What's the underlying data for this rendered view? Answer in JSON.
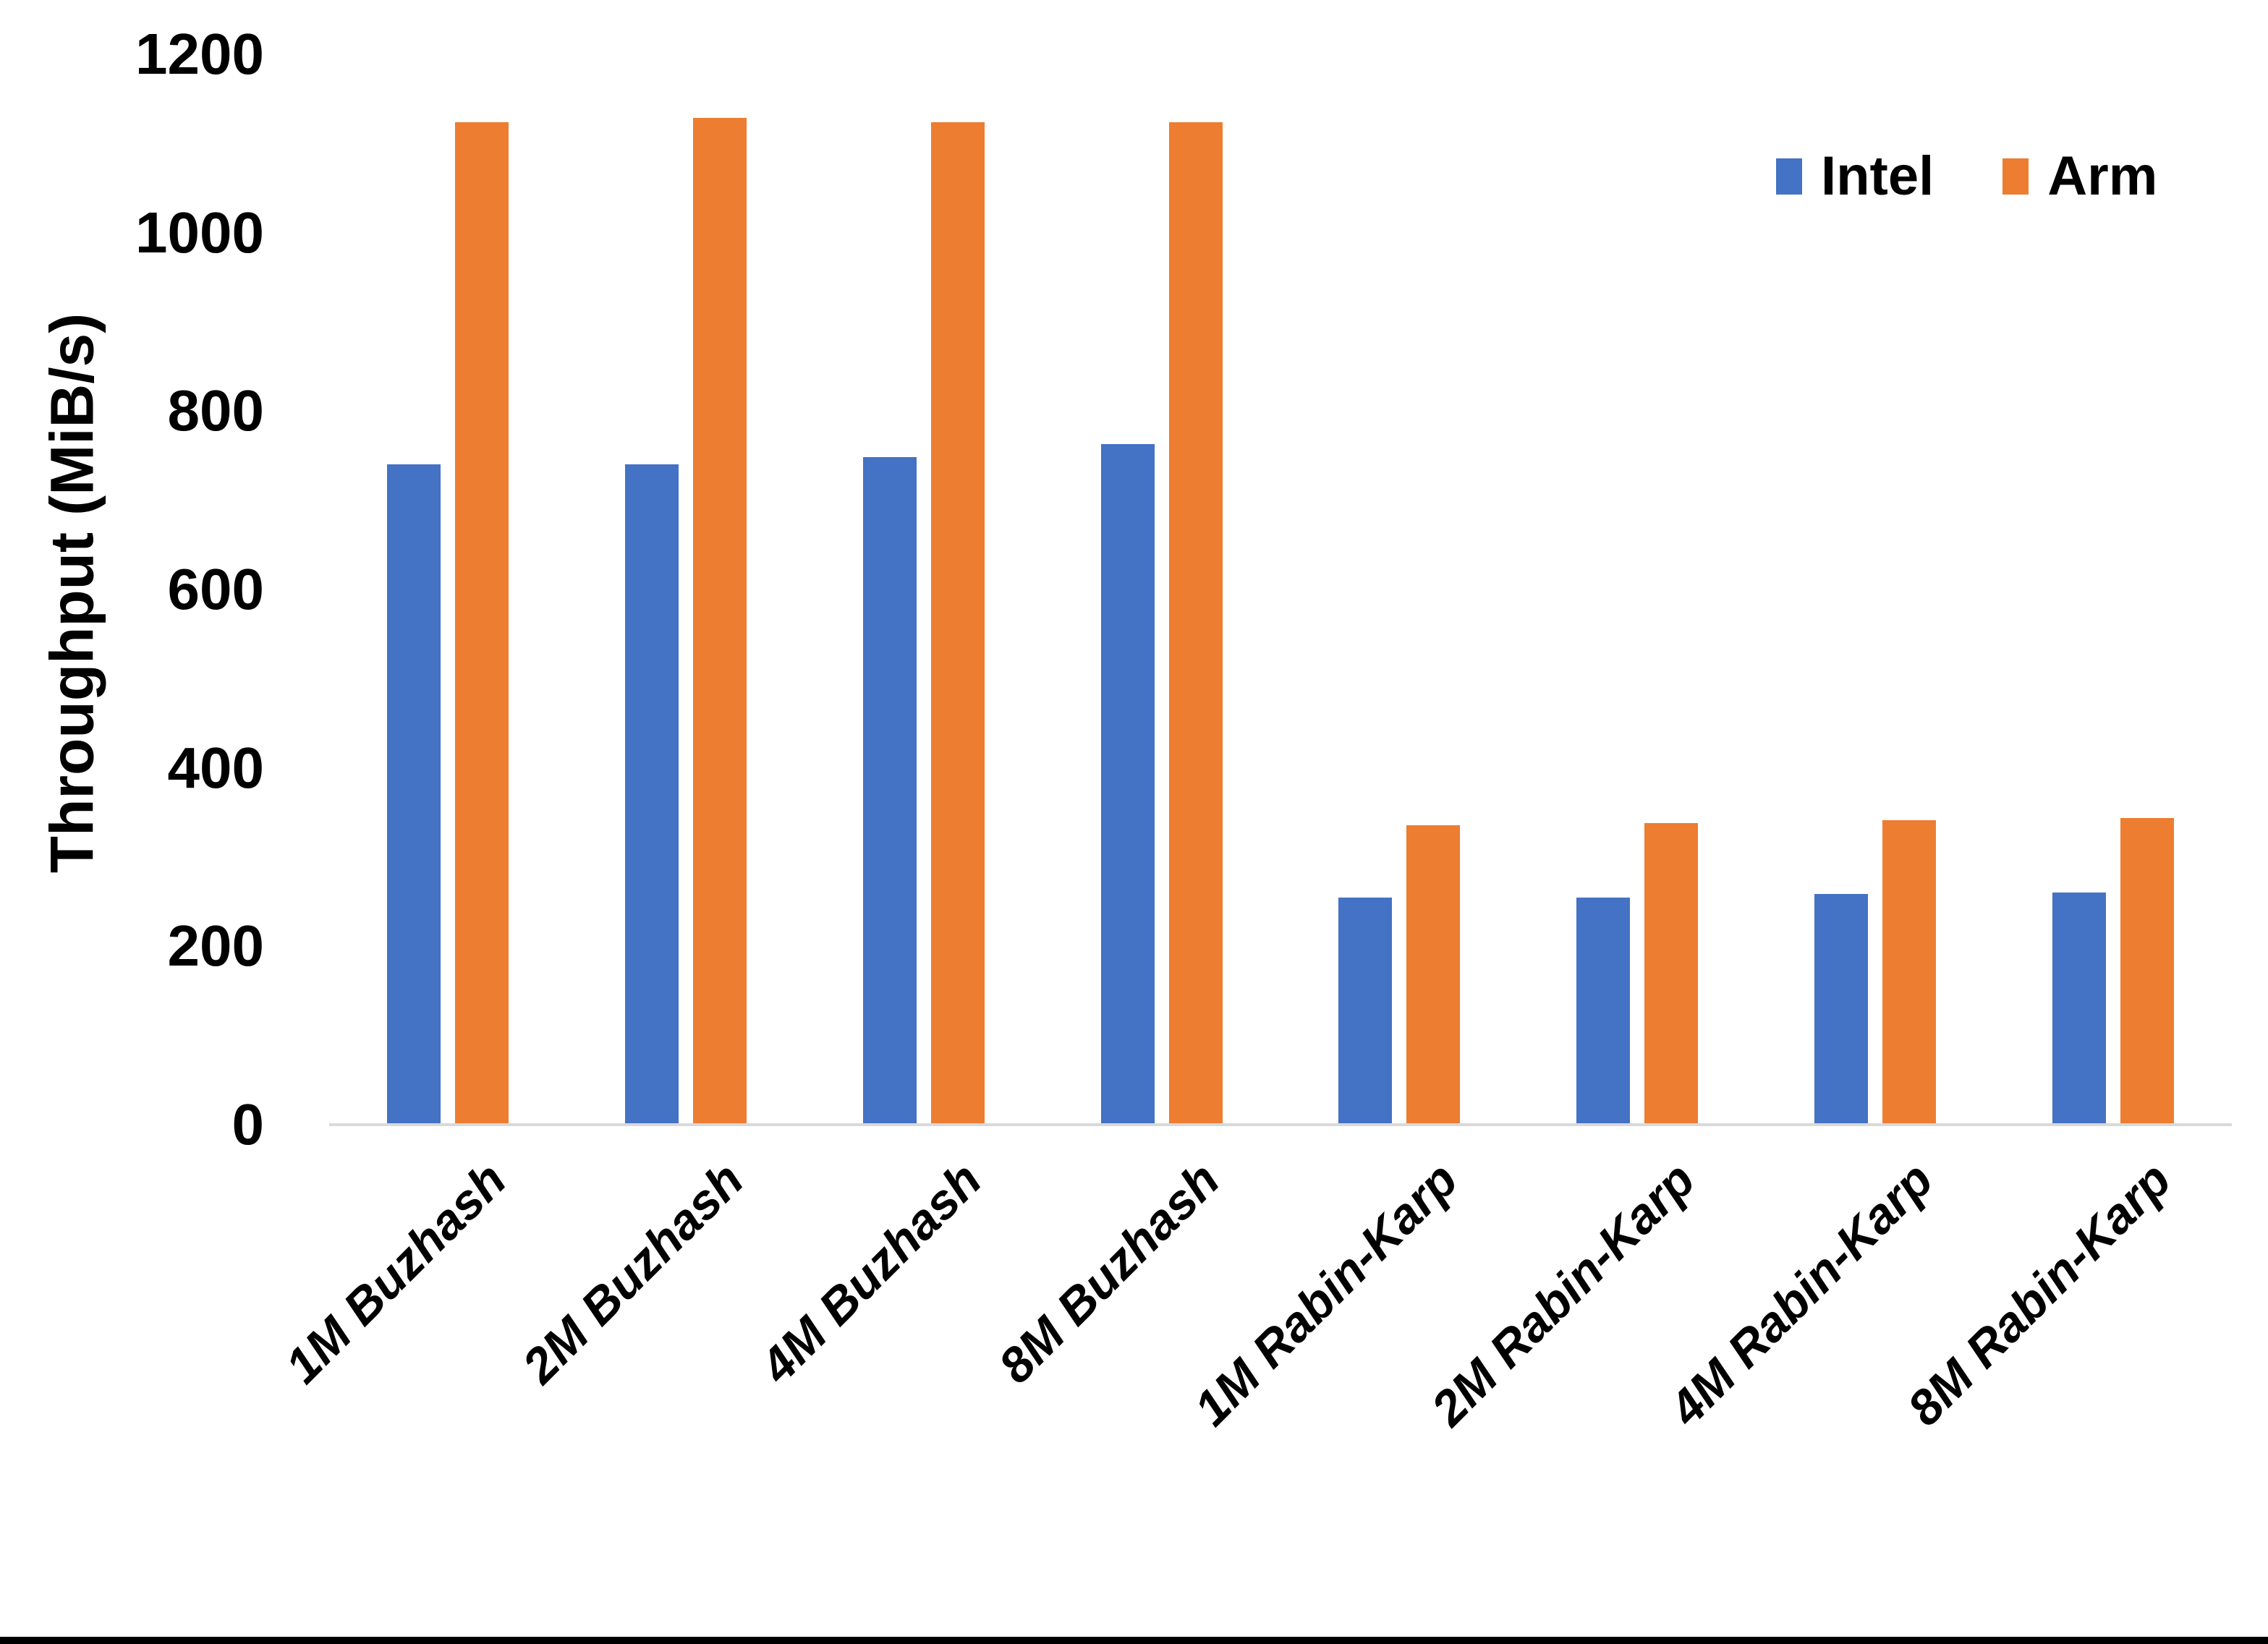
{
  "chart_data": {
    "type": "bar",
    "categories": [
      "1M Buzhash",
      "2M Buzhash",
      "4M Buzhash",
      "8M Buzhash",
      "1M Rabin-Karp",
      "2M Rabin-Karp",
      "4M Rabin-Karp",
      "8M Rabin-Karp"
    ],
    "series": [
      {
        "name": "Intel",
        "color": "#4472C4",
        "values": [
          740,
          740,
          748,
          763,
          255,
          255,
          259,
          260
        ]
      },
      {
        "name": "Arm",
        "color": "#ED7D31",
        "values": [
          1124,
          1129,
          1124,
          1124,
          336,
          338,
          341,
          344
        ]
      }
    ],
    "title": "",
    "xlabel": "",
    "ylabel": "Throughput (MiB/s)",
    "ylim": [
      0,
      1200
    ],
    "yticks": [
      0,
      200,
      400,
      600,
      800,
      1000,
      1200
    ],
    "grid": false,
    "legend_position": "top-right"
  },
  "colors": {
    "axis_line": "#D9D9D9",
    "text": "#000000",
    "background": "#FFFFFF",
    "bottom_border": "#000000"
  }
}
